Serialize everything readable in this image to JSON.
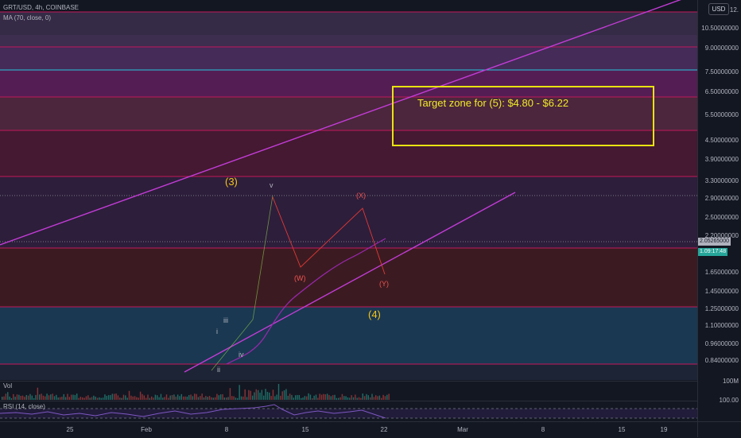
{
  "header": {
    "symbol_line": "GRT/USD, 4h, COINBASE",
    "ma_line": "MA (70, close, 0)"
  },
  "currency_badge": "USD",
  "y_axis_labels": [
    "12.",
    "10.50000000",
    "9.00000000",
    "7.50000000",
    "6.50000000",
    "5.50000000",
    "4.50000000",
    "3.90000000",
    "3.30000000",
    "2.90000000",
    "2.50000000",
    "2.20000000",
    "1.65000000",
    "1.45000000",
    "1.25000000",
    "1.10000000",
    "0.96000000",
    "0.84000000"
  ],
  "price_tags": {
    "current": "2.05265000",
    "countdown": "1.09:17:48"
  },
  "annotations": {
    "target_zone": "Target zone for (5): $4.80 - $6.22",
    "wave_3": "(3)",
    "wave_4": "(4)",
    "wave_v": "v",
    "wave_i": "i",
    "wave_ii": "ii",
    "wave_iii": "iii",
    "wave_iv": "iv",
    "wave_W": "(W)",
    "wave_X": "(X)",
    "wave_Y": "(Y)"
  },
  "panes": {
    "volume_label": "Vol",
    "volume_axis": "100M",
    "rsi_label": "RSI (14, close)",
    "rsi_axis": "100.00"
  },
  "x_axis_labels": [
    "25",
    "Feb",
    "8",
    "15",
    "22",
    "Mar",
    "8",
    "15",
    "19"
  ],
  "colors": {
    "background": "#131722",
    "fib_line": "#c2185b",
    "channel_line": "#c23cd6",
    "target_box": "#e9e212",
    "candle_up": "#26a69a",
    "candle_down": "#ef5350",
    "wave_major": "#f5c518",
    "wave_corrective": "#ef5350"
  },
  "chart_data": {
    "type": "candlestick",
    "symbol": "GRT/USD",
    "timeframe": "4h",
    "exchange": "COINBASE",
    "y_scale": "log",
    "ylim": [
      0.8,
      12.5
    ],
    "price_path": [
      {
        "date": "Jan 30",
        "price": 0.78
      },
      {
        "date": "Feb 1",
        "price": 0.8
      },
      {
        "date": "Feb 3",
        "price": 0.84
      },
      {
        "date": "Feb 5",
        "price": 0.98
      },
      {
        "date": "Feb 7",
        "price": 0.82
      },
      {
        "date": "Feb 8",
        "price": 0.95
      },
      {
        "date": "Feb 9",
        "price": 1.05
      },
      {
        "date": "Feb 10",
        "price": 1.25
      },
      {
        "date": "Feb 11",
        "price": 1.75
      },
      {
        "date": "Feb 12",
        "price": 2.9
      },
      {
        "date": "Feb 13",
        "price": 2.15
      },
      {
        "date": "Feb 14",
        "price": 1.75
      },
      {
        "date": "Feb 15",
        "price": 2.1
      },
      {
        "date": "Feb 17",
        "price": 2.2
      },
      {
        "date": "Feb 18",
        "price": 2.25
      },
      {
        "date": "Feb 19",
        "price": 2.3
      },
      {
        "date": "Feb 20",
        "price": 2.6
      },
      {
        "date": "Feb 21",
        "price": 2.3
      },
      {
        "date": "Feb 22",
        "price": 2.05
      }
    ],
    "target_zone": [
      4.8,
      6.22
    ]
  }
}
